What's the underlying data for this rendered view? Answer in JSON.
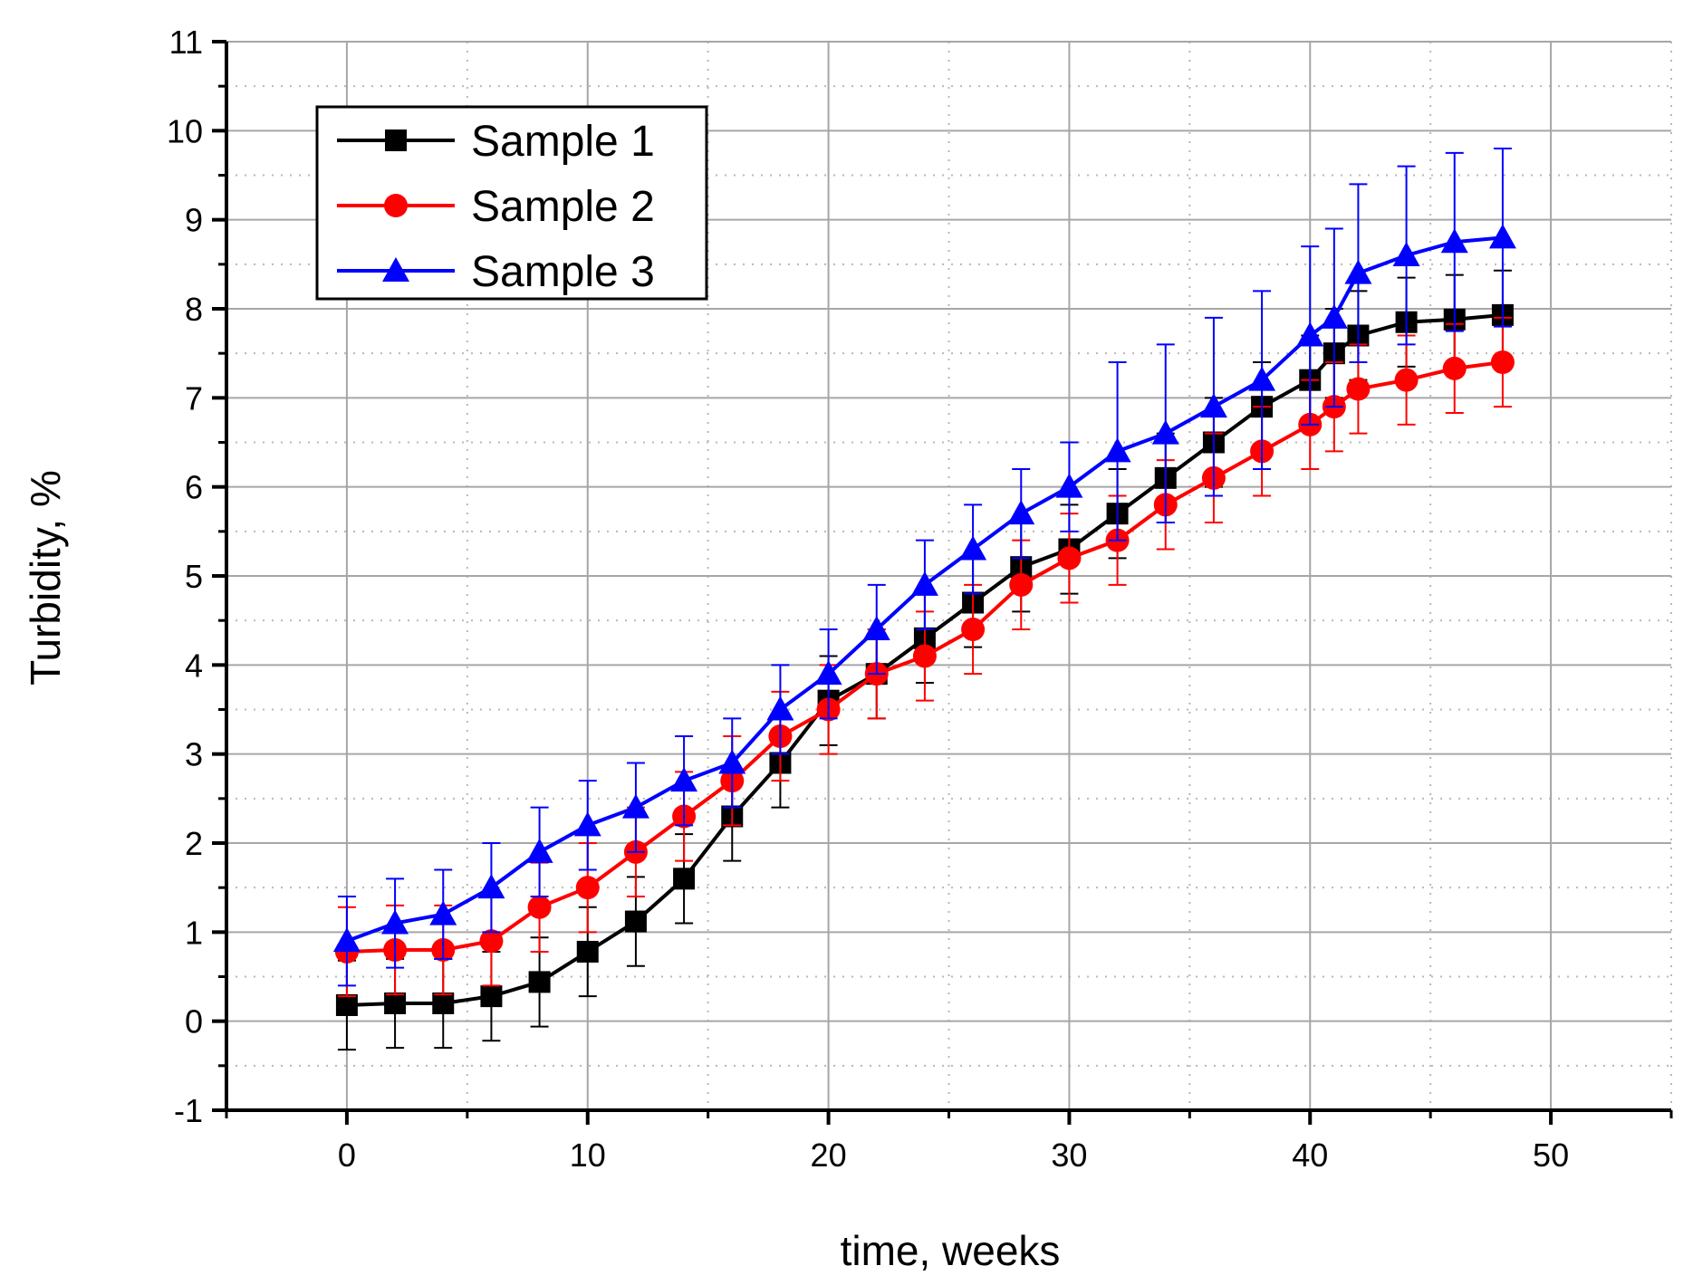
{
  "chart_data": {
    "type": "line",
    "title": "",
    "xlabel": "time, weeks",
    "ylabel": "Turbidity, %",
    "xlim": [
      -5,
      55
    ],
    "ylim": [
      -1,
      11
    ],
    "xticks": [
      0,
      10,
      20,
      30,
      40,
      50
    ],
    "yticks": [
      -1,
      0,
      1,
      2,
      3,
      4,
      5,
      6,
      7,
      8,
      9,
      10,
      11
    ],
    "grid": true,
    "legend_position": "top-left",
    "x": [
      0,
      2,
      4,
      6,
      8,
      10,
      12,
      14,
      16,
      18,
      20,
      22,
      24,
      26,
      28,
      30,
      32,
      34,
      36,
      38,
      40,
      41,
      42,
      44,
      46,
      48
    ],
    "series": [
      {
        "name": "Sample 1",
        "color": "#000000",
        "marker": "square",
        "values": [
          0.18,
          0.2,
          0.2,
          0.28,
          0.44,
          0.78,
          1.12,
          1.6,
          2.3,
          2.9,
          3.6,
          3.9,
          4.3,
          4.7,
          5.1,
          5.3,
          5.7,
          6.1,
          6.5,
          6.9,
          7.2,
          7.5,
          7.7,
          7.85,
          7.88,
          7.93
        ],
        "errors": [
          0.5,
          0.5,
          0.5,
          0.5,
          0.5,
          0.5,
          0.5,
          0.5,
          0.5,
          0.5,
          0.5,
          0.5,
          0.5,
          0.5,
          0.5,
          0.5,
          0.5,
          0.5,
          0.5,
          0.5,
          0.5,
          0.5,
          0.5,
          0.5,
          0.5,
          0.5
        ]
      },
      {
        "name": "Sample 2",
        "color": "#ff0000",
        "marker": "circle",
        "values": [
          0.78,
          0.8,
          0.8,
          0.9,
          1.28,
          1.5,
          1.9,
          2.3,
          2.7,
          3.2,
          3.5,
          3.9,
          4.1,
          4.4,
          4.9,
          5.2,
          5.4,
          5.8,
          6.1,
          6.4,
          6.7,
          6.9,
          7.1,
          7.2,
          7.33,
          7.4
        ],
        "errors": [
          0.5,
          0.5,
          0.5,
          0.5,
          0.5,
          0.5,
          0.5,
          0.5,
          0.5,
          0.5,
          0.5,
          0.5,
          0.5,
          0.5,
          0.5,
          0.5,
          0.5,
          0.5,
          0.5,
          0.5,
          0.5,
          0.5,
          0.5,
          0.5,
          0.5,
          0.5
        ]
      },
      {
        "name": "Sample 3",
        "color": "#0000ff",
        "marker": "triangle",
        "values": [
          0.9,
          1.1,
          1.2,
          1.5,
          1.9,
          2.2,
          2.4,
          2.7,
          2.9,
          3.5,
          3.9,
          4.4,
          4.9,
          5.3,
          5.7,
          6.0,
          6.4,
          6.6,
          6.9,
          7.2,
          7.7,
          7.9,
          8.4,
          8.6,
          8.75,
          8.8
        ],
        "errors": [
          0.5,
          0.5,
          0.5,
          0.5,
          0.5,
          0.5,
          0.5,
          0.5,
          0.5,
          0.5,
          0.5,
          0.5,
          0.5,
          0.5,
          0.5,
          0.5,
          1.0,
          1.0,
          1.0,
          1.0,
          1.0,
          1.0,
          1.0,
          1.0,
          1.0,
          1.0
        ]
      }
    ]
  }
}
